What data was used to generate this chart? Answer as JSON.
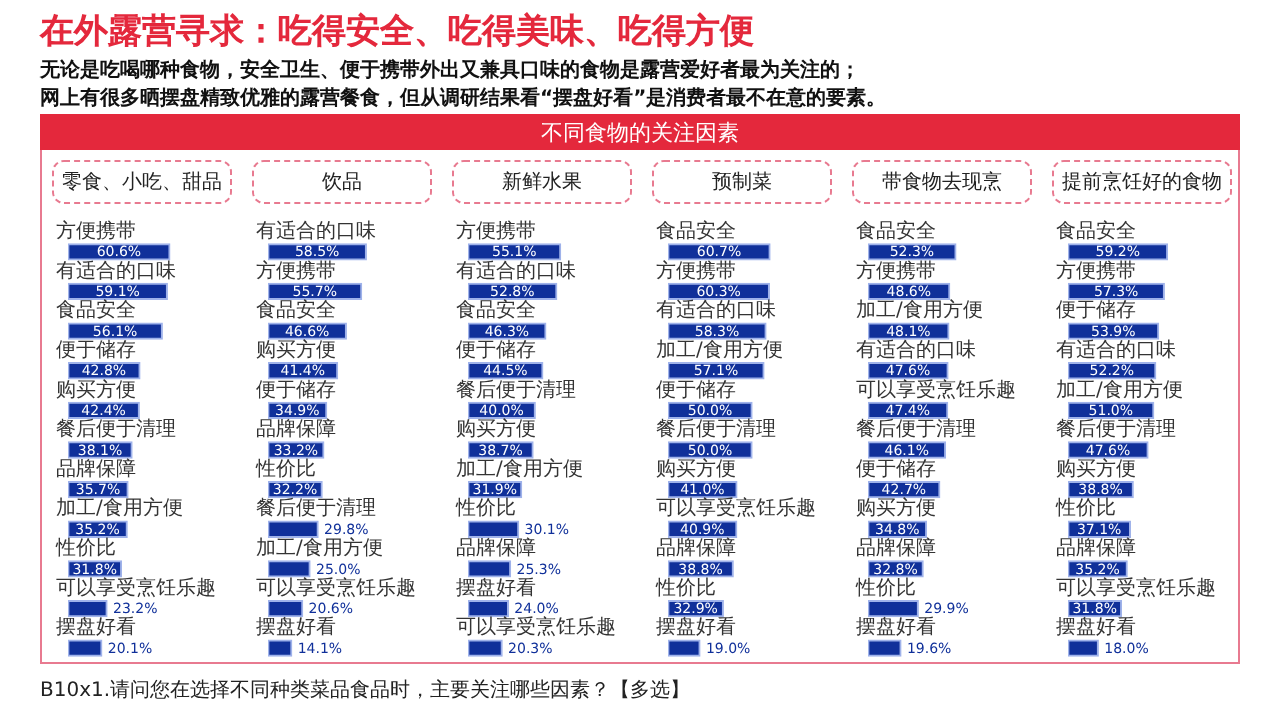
{
  "chart_data": [
    {
      "type": "bar",
      "orientation": "horizontal",
      "title": "零食、小吃、甜品",
      "color": "#10309a",
      "annotations": [
        "在外露营寻求：吃得安全、吃得美味、吃得方便",
        "无论是吃喝哪种食物，安全卫生、便于携带外出又兼具口味的食物是露营爱好者最为关注的；",
        "网上有很多晒摆盘精致优雅的露营餐食，但从调研结果看“摆盘好看”是消费者最不在意的要素。",
        "不同食物的关注因素",
        "B10x1.请问您在选择不同种类菜品食品时，主要关注哪些因素？【多选】"
      ],
      "categories": [
        "方便携带",
        "有适合的口味",
        "食品安全",
        "便于储存",
        "购买方便",
        "餐后便于清理",
        "品牌保障",
        "加工/食用方便",
        "性价比",
        "可以享受烹饪乐趣",
        "摆盘好看"
      ],
      "values": [
        60.6,
        59.1,
        56.1,
        42.8,
        42.4,
        38.1,
        35.7,
        35.2,
        31.8,
        23.2,
        20.1
      ],
      "value_labels": [
        "60.6%",
        "59.1%",
        "56.1%",
        "42.8%",
        "42.4%",
        "38.1%",
        "35.7%",
        "35.2%",
        "31.8%",
        "23.2%",
        "20.1%"
      ]
    },
    {
      "type": "bar",
      "orientation": "horizontal",
      "title": "饮品",
      "color": "#10309a",
      "categories": [
        "有适合的口味",
        "方便携带",
        "食品安全",
        "购买方便",
        "便于储存",
        "品牌保障",
        "性价比",
        "餐后便于清理",
        "加工/食用方便",
        "可以享受烹饪乐趣",
        "摆盘好看"
      ],
      "values": [
        58.5,
        55.7,
        46.6,
        41.4,
        34.9,
        33.2,
        32.2,
        29.8,
        25.0,
        20.6,
        14.1
      ],
      "value_labels": [
        "58.5%",
        "55.7%",
        "46.6%",
        "41.4%",
        "34.9%",
        "33.2%",
        "32.2%",
        "29.8%",
        "25.0%",
        "20.6%",
        "14.1%"
      ]
    },
    {
      "type": "bar",
      "orientation": "horizontal",
      "title": "新鲜水果",
      "color": "#10309a",
      "categories": [
        "方便携带",
        "有适合的口味",
        "食品安全",
        "便于储存",
        "餐后便于清理",
        "购买方便",
        "加工/食用方便",
        "性价比",
        "品牌保障",
        "摆盘好看",
        "可以享受烹饪乐趣"
      ],
      "values": [
        55.1,
        52.8,
        46.3,
        44.5,
        40.0,
        38.7,
        31.9,
        30.1,
        25.3,
        24.0,
        20.3
      ],
      "value_labels": [
        "55.1%",
        "52.8%",
        "46.3%",
        "44.5%",
        "40.0%",
        "38.7%",
        "31.9%",
        "30.1%",
        "25.3%",
        "24.0%",
        "20.3%"
      ]
    },
    {
      "type": "bar",
      "orientation": "horizontal",
      "title": "预制菜",
      "color": "#10309a",
      "categories": [
        "食品安全",
        "方便携带",
        "有适合的口味",
        "加工/食用方便",
        "便于储存",
        "餐后便于清理",
        "购买方便",
        "可以享受烹饪乐趣",
        "品牌保障",
        "性价比",
        "摆盘好看"
      ],
      "values": [
        60.7,
        60.3,
        58.3,
        57.1,
        50.0,
        50.0,
        41.0,
        40.9,
        38.8,
        32.9,
        19.0
      ],
      "value_labels": [
        "60.7%",
        "60.3%",
        "58.3%",
        "57.1%",
        "50.0%",
        "50.0%",
        "41.0%",
        "40.9%",
        "38.8%",
        "32.9%",
        "19.0%"
      ]
    },
    {
      "type": "bar",
      "orientation": "horizontal",
      "title": "带食物去现烹",
      "color": "#10309a",
      "categories": [
        "食品安全",
        "方便携带",
        "加工/食用方便",
        "有适合的口味",
        "可以享受烹饪乐趣",
        "餐后便于清理",
        "便于储存",
        "购买方便",
        "品牌保障",
        "性价比",
        "摆盘好看"
      ],
      "values": [
        52.3,
        48.6,
        48.1,
        47.6,
        47.4,
        46.1,
        42.7,
        34.8,
        32.8,
        29.9,
        19.6
      ],
      "value_labels": [
        "52.3%",
        "48.6%",
        "48.1%",
        "47.6%",
        "47.4%",
        "46.1%",
        "42.7%",
        "34.8%",
        "32.8%",
        "29.9%",
        "19.6%"
      ]
    },
    {
      "type": "bar",
      "orientation": "horizontal",
      "title": "提前烹饪好的食物",
      "color": "#10309a",
      "categories": [
        "食品安全",
        "方便携带",
        "便于储存",
        "有适合的口味",
        "加工/食用方便",
        "餐后便于清理",
        "购买方便",
        "性价比",
        "品牌保障",
        "可以享受烹饪乐趣",
        "摆盘好看"
      ],
      "values": [
        59.2,
        57.3,
        53.9,
        52.2,
        51.0,
        47.6,
        38.8,
        37.1,
        35.2,
        31.8,
        18.0
      ],
      "value_labels": [
        "59.2%",
        "57.3%",
        "53.9%",
        "52.2%",
        "51.0%",
        "47.6%",
        "38.8%",
        "37.1%",
        "35.2%",
        "31.8%",
        "18.0%"
      ]
    }
  ]
}
